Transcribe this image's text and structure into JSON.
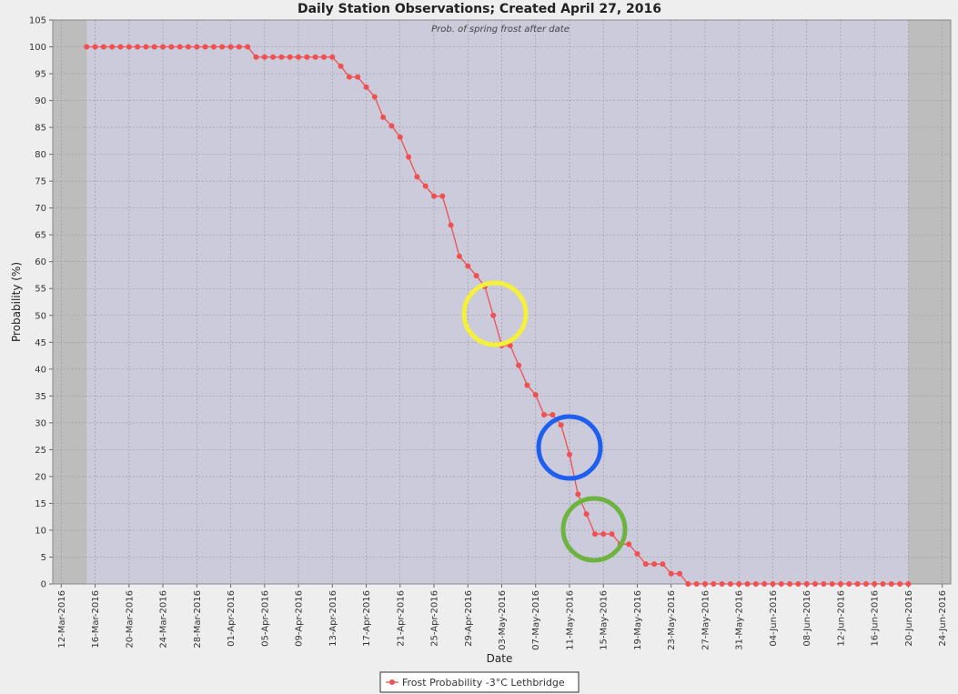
{
  "chart_data": {
    "type": "line",
    "title": "Daily Station Observations; Created April 27, 2016",
    "annotation": "Prob. of spring frost after date",
    "x_label": "Date",
    "y_label": "Probability (%)",
    "x": [
      "15-Mar-2016",
      "16-Mar-2016",
      "17-Mar-2016",
      "18-Mar-2016",
      "19-Mar-2016",
      "20-Mar-2016",
      "21-Mar-2016",
      "22-Mar-2016",
      "23-Mar-2016",
      "24-Mar-2016",
      "25-Mar-2016",
      "26-Mar-2016",
      "27-Mar-2016",
      "28-Mar-2016",
      "29-Mar-2016",
      "30-Mar-2016",
      "31-Mar-2016",
      "01-Apr-2016",
      "02-Apr-2016",
      "03-Apr-2016",
      "04-Apr-2016",
      "05-Apr-2016",
      "06-Apr-2016",
      "07-Apr-2016",
      "08-Apr-2016",
      "09-Apr-2016",
      "10-Apr-2016",
      "11-Apr-2016",
      "12-Apr-2016",
      "13-Apr-2016",
      "14-Apr-2016",
      "15-Apr-2016",
      "16-Apr-2016",
      "17-Apr-2016",
      "18-Apr-2016",
      "19-Apr-2016",
      "20-Apr-2016",
      "21-Apr-2016",
      "22-Apr-2016",
      "23-Apr-2016",
      "24-Apr-2016",
      "25-Apr-2016",
      "26-Apr-2016",
      "27-Apr-2016",
      "28-Apr-2016",
      "29-Apr-2016",
      "30-Apr-2016",
      "01-May-2016",
      "02-May-2016",
      "03-May-2016",
      "04-May-2016",
      "05-May-2016",
      "06-May-2016",
      "07-May-2016",
      "08-May-2016",
      "09-May-2016",
      "10-May-2016",
      "11-May-2016",
      "12-May-2016",
      "13-May-2016",
      "14-May-2016",
      "15-May-2016",
      "16-May-2016",
      "17-May-2016",
      "18-May-2016",
      "19-May-2016",
      "20-May-2016",
      "21-May-2016",
      "22-May-2016",
      "23-May-2016",
      "24-May-2016",
      "25-May-2016",
      "26-May-2016",
      "27-May-2016",
      "28-May-2016",
      "29-May-2016",
      "30-May-2016",
      "31-May-2016",
      "01-Jun-2016",
      "02-Jun-2016",
      "03-Jun-2016",
      "04-Jun-2016",
      "05-Jun-2016",
      "06-Jun-2016",
      "07-Jun-2016",
      "08-Jun-2016",
      "09-Jun-2016",
      "10-Jun-2016",
      "11-Jun-2016",
      "12-Jun-2016",
      "13-Jun-2016",
      "14-Jun-2016",
      "15-Jun-2016",
      "16-Jun-2016",
      "17-Jun-2016",
      "18-Jun-2016",
      "19-Jun-2016",
      "20-Jun-2016"
    ],
    "series": [
      {
        "name": "Frost Probability -3°C Lethbridge",
        "color": "#f05050",
        "values": [
          100,
          100,
          100,
          100,
          100,
          100,
          100,
          100,
          100,
          100,
          100,
          100,
          100,
          100,
          100,
          100,
          100,
          100,
          100,
          100,
          98.1,
          98.1,
          98.1,
          98.1,
          98.1,
          98.1,
          98.1,
          98.1,
          98.1,
          98.1,
          96.4,
          94.4,
          94.4,
          92.5,
          90.7,
          86.9,
          85.3,
          83.2,
          79.5,
          75.8,
          74.1,
          72.2,
          72.2,
          66.8,
          61.0,
          59.2,
          57.4,
          55.4,
          50.0,
          44.4,
          44.4,
          40.7,
          37.0,
          35.2,
          31.5,
          31.5,
          29.6,
          24.1,
          16.7,
          13.0,
          9.3,
          9.3,
          9.3,
          7.4,
          7.4,
          5.6,
          3.7,
          3.7,
          3.7,
          1.9,
          1.9,
          0,
          0,
          0,
          0,
          0,
          0,
          0,
          0,
          0,
          0,
          0,
          0,
          0,
          0,
          0,
          0,
          0,
          0,
          0,
          0,
          0,
          0,
          0,
          0,
          0,
          0,
          0
        ]
      }
    ],
    "xlim": [
      "11-Mar-2016",
      "25-Jun-2016"
    ],
    "xticks": [
      "12-Mar-2016",
      "16-Mar-2016",
      "20-Mar-2016",
      "24-Mar-2016",
      "28-Mar-2016",
      "01-Apr-2016",
      "05-Apr-2016",
      "09-Apr-2016",
      "13-Apr-2016",
      "17-Apr-2016",
      "21-Apr-2016",
      "25-Apr-2016",
      "29-Apr-2016",
      "03-May-2016",
      "07-May-2016",
      "11-May-2016",
      "15-May-2016",
      "19-May-2016",
      "23-May-2016",
      "27-May-2016",
      "31-May-2016",
      "04-Jun-2016",
      "08-Jun-2016",
      "12-Jun-2016",
      "16-Jun-2016",
      "20-Jun-2016",
      "24-Jun-2016"
    ],
    "ylim": [
      0,
      105
    ],
    "yticks": [
      0,
      5,
      10,
      15,
      20,
      25,
      30,
      35,
      40,
      45,
      50,
      55,
      60,
      65,
      70,
      75,
      80,
      85,
      90,
      95,
      100,
      105
    ],
    "grid": true
  }
}
